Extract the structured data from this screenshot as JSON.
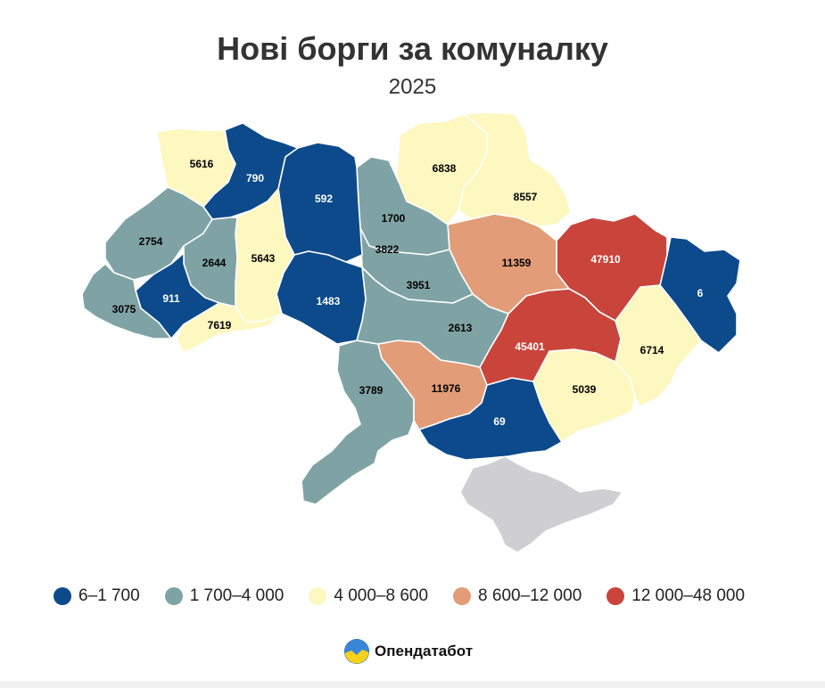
{
  "title": "Нові борги за комуналку",
  "subtitle": "2025",
  "colors": {
    "bin1": "#0d4a8c",
    "bin2": "#7fa3a4",
    "bin3": "#fdf7c0",
    "bin4": "#e29c77",
    "bin5": "#c9443a",
    "occupied": "#cfcfd3",
    "label_dark": "#000000",
    "label_light": "#ffffff"
  },
  "legend": [
    {
      "label": "6–1 700",
      "color": "#0d4a8c"
    },
    {
      "label": "1 700–4 000",
      "color": "#7fa3a4"
    },
    {
      "label": "4 000–8 600",
      "color": "#fdf7c0"
    },
    {
      "label": "8 600–12 000",
      "color": "#e29c77"
    },
    {
      "label": "12 000–48 000",
      "color": "#c9443a"
    }
  ],
  "regions": [
    {
      "name": "Волинська",
      "value": 5616,
      "display": "5616"
    },
    {
      "name": "Рівненська",
      "value": 790,
      "display": "790"
    },
    {
      "name": "Житомирська",
      "value": 592,
      "display": "592"
    },
    {
      "name": "Київська",
      "value": 1700,
      "display": "1700"
    },
    {
      "name": "Чернігівська",
      "value": 6838,
      "display": "6838"
    },
    {
      "name": "Сумська",
      "value": 8557,
      "display": "8557"
    },
    {
      "name": "Львівська",
      "value": 2754,
      "display": "2754"
    },
    {
      "name": "Тернопільська",
      "value": 2644,
      "display": "2644"
    },
    {
      "name": "Хмельницька",
      "value": 5643,
      "display": "5643"
    },
    {
      "name": "Черкаська",
      "value": 3822,
      "display": "3822"
    },
    {
      "name": "Полтавська",
      "value": 11359,
      "display": "11359"
    },
    {
      "name": "Харківська",
      "value": 47910,
      "display": "47910"
    },
    {
      "name": "Луганська",
      "value": 6,
      "display": "6"
    },
    {
      "name": "Закарпатська",
      "value": 3075,
      "display": "3075"
    },
    {
      "name": "Івано-Франківська",
      "value": 911,
      "display": "911"
    },
    {
      "name": "Вінницька",
      "value": 1483,
      "display": "1483"
    },
    {
      "name": "Кіровоградська",
      "value": 3951,
      "display": "3951"
    },
    {
      "name": "Чернівецька",
      "value": 7619,
      "display": "7619"
    },
    {
      "name": "Дніпропетровська",
      "value": 2613,
      "display": "2613"
    },
    {
      "name": "Донецька (Дніпро)",
      "value": 45401,
      "display": "45401"
    },
    {
      "name": "Донецька",
      "value": 6714,
      "display": "6714"
    },
    {
      "name": "Одеська",
      "value": 3789,
      "display": "3789"
    },
    {
      "name": "Миколаївська",
      "value": 11976,
      "display": "11976"
    },
    {
      "name": "Запорізька",
      "value": 5039,
      "display": "5039"
    },
    {
      "name": "Херсонська",
      "value": 69,
      "display": "69"
    }
  ],
  "occupied_region": "Крим",
  "brand": {
    "name": "Опендатабот",
    "logo_icon": "opendatabot-logo-icon"
  }
}
